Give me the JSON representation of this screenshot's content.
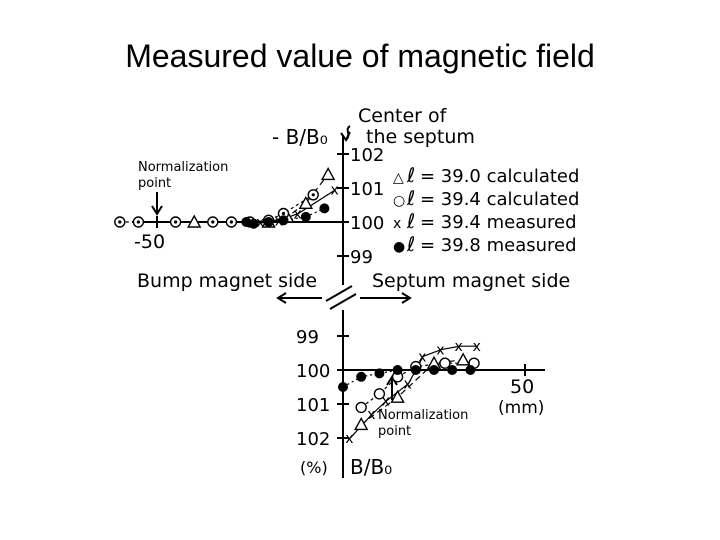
{
  "slide_title": "Measured value of magnetic field",
  "labels": {
    "upper_ylabel": "- B/B₀",
    "lower_ylabel": "B/B₀",
    "center_label_1": "Center of",
    "center_label_2": "the septum",
    "norm_point_1": "Normalization",
    "norm_point_2": "point",
    "bump_side": "Bump magnet side",
    "septum_side": "Septum magnet side",
    "upper_xtick": "-50",
    "lower_xtick": "50",
    "lower_xunit": "(mm)",
    "percent_unit": "(%)"
  },
  "legend": [
    {
      "symbol": "△",
      "ell": "ℓ",
      "text": "= 39.0  calculated"
    },
    {
      "symbol": "○",
      "ell": "ℓ",
      "text": "= 39.4  calculated"
    },
    {
      "symbol": "x",
      "ell": "ℓ",
      "text": "= 39.4  measured"
    },
    {
      "symbol": "●",
      "ell": "ℓ",
      "text": "= 39.8  measured"
    }
  ],
  "chart_data": [
    {
      "type": "scatter",
      "xlabel": "",
      "ylabel": "- B/B₀",
      "xlim": [
        -70,
        0
      ],
      "ylim": [
        99,
        102
      ],
      "y_ticks": [
        "102",
        "101",
        "100",
        "99"
      ],
      "x_ticks": [
        "-50"
      ],
      "series": [
        {
          "name": "ℓ = 39.0 calculated",
          "marker": "triangle",
          "x": [
            -40,
            -20,
            -15,
            -10,
            -4
          ],
          "y": [
            100.0,
            100.0,
            100.15,
            100.55,
            101.4
          ]
        },
        {
          "name": "ℓ = 39.4 calculated",
          "marker": "circle-dot",
          "x": [
            -60,
            -55,
            -45,
            -35,
            -30,
            -25,
            -20,
            -16,
            -8
          ],
          "y": [
            100.0,
            100.0,
            100.0,
            100.0,
            100.0,
            100.0,
            100.05,
            100.25,
            100.8
          ]
        },
        {
          "name": "ℓ = 39.4 measured",
          "marker": "x",
          "x": [
            -22,
            -17,
            -12,
            -2
          ],
          "y": [
            100.0,
            100.05,
            100.25,
            100.95
          ]
        },
        {
          "name": "ℓ = 39.8 measured",
          "marker": "filled-circle",
          "x": [
            -26,
            -24,
            -20,
            -16,
            -10,
            -5
          ],
          "y": [
            100.0,
            99.95,
            100.0,
            100.05,
            100.15,
            100.4
          ]
        }
      ]
    },
    {
      "type": "scatter",
      "xlabel": "",
      "ylabel": "B/B₀",
      "xlim": [
        0,
        70
      ],
      "ylim": [
        99,
        102
      ],
      "y_ticks": [
        "99",
        "100",
        "101",
        "102"
      ],
      "x_ticks": [
        "50"
      ],
      "series": [
        {
          "name": "ℓ = 39.0 calculated",
          "marker": "triangle",
          "x": [
            5,
            15,
            25,
            33
          ],
          "y": [
            101.6,
            100.8,
            99.8,
            99.7
          ]
        },
        {
          "name": "ℓ = 39.4 calculated",
          "marker": "circle",
          "x": [
            5,
            10,
            15,
            20,
            28,
            36
          ],
          "y": [
            101.1,
            100.7,
            100.2,
            99.9,
            99.8,
            99.8
          ]
        },
        {
          "name": "ℓ = 39.4 measured",
          "marker": "x",
          "x": [
            2,
            8,
            12,
            18,
            22,
            27,
            32,
            37
          ],
          "y": [
            102.0,
            101.3,
            100.9,
            100.4,
            99.6,
            99.4,
            99.3,
            99.3
          ]
        },
        {
          "name": "ℓ = 39.8 measured",
          "marker": "filled-circle",
          "x": [
            0,
            5,
            10,
            15,
            20,
            25,
            30,
            35
          ],
          "y": [
            100.5,
            100.2,
            100.1,
            100.0,
            100.0,
            100.0,
            100.0,
            100.0
          ]
        }
      ]
    }
  ]
}
